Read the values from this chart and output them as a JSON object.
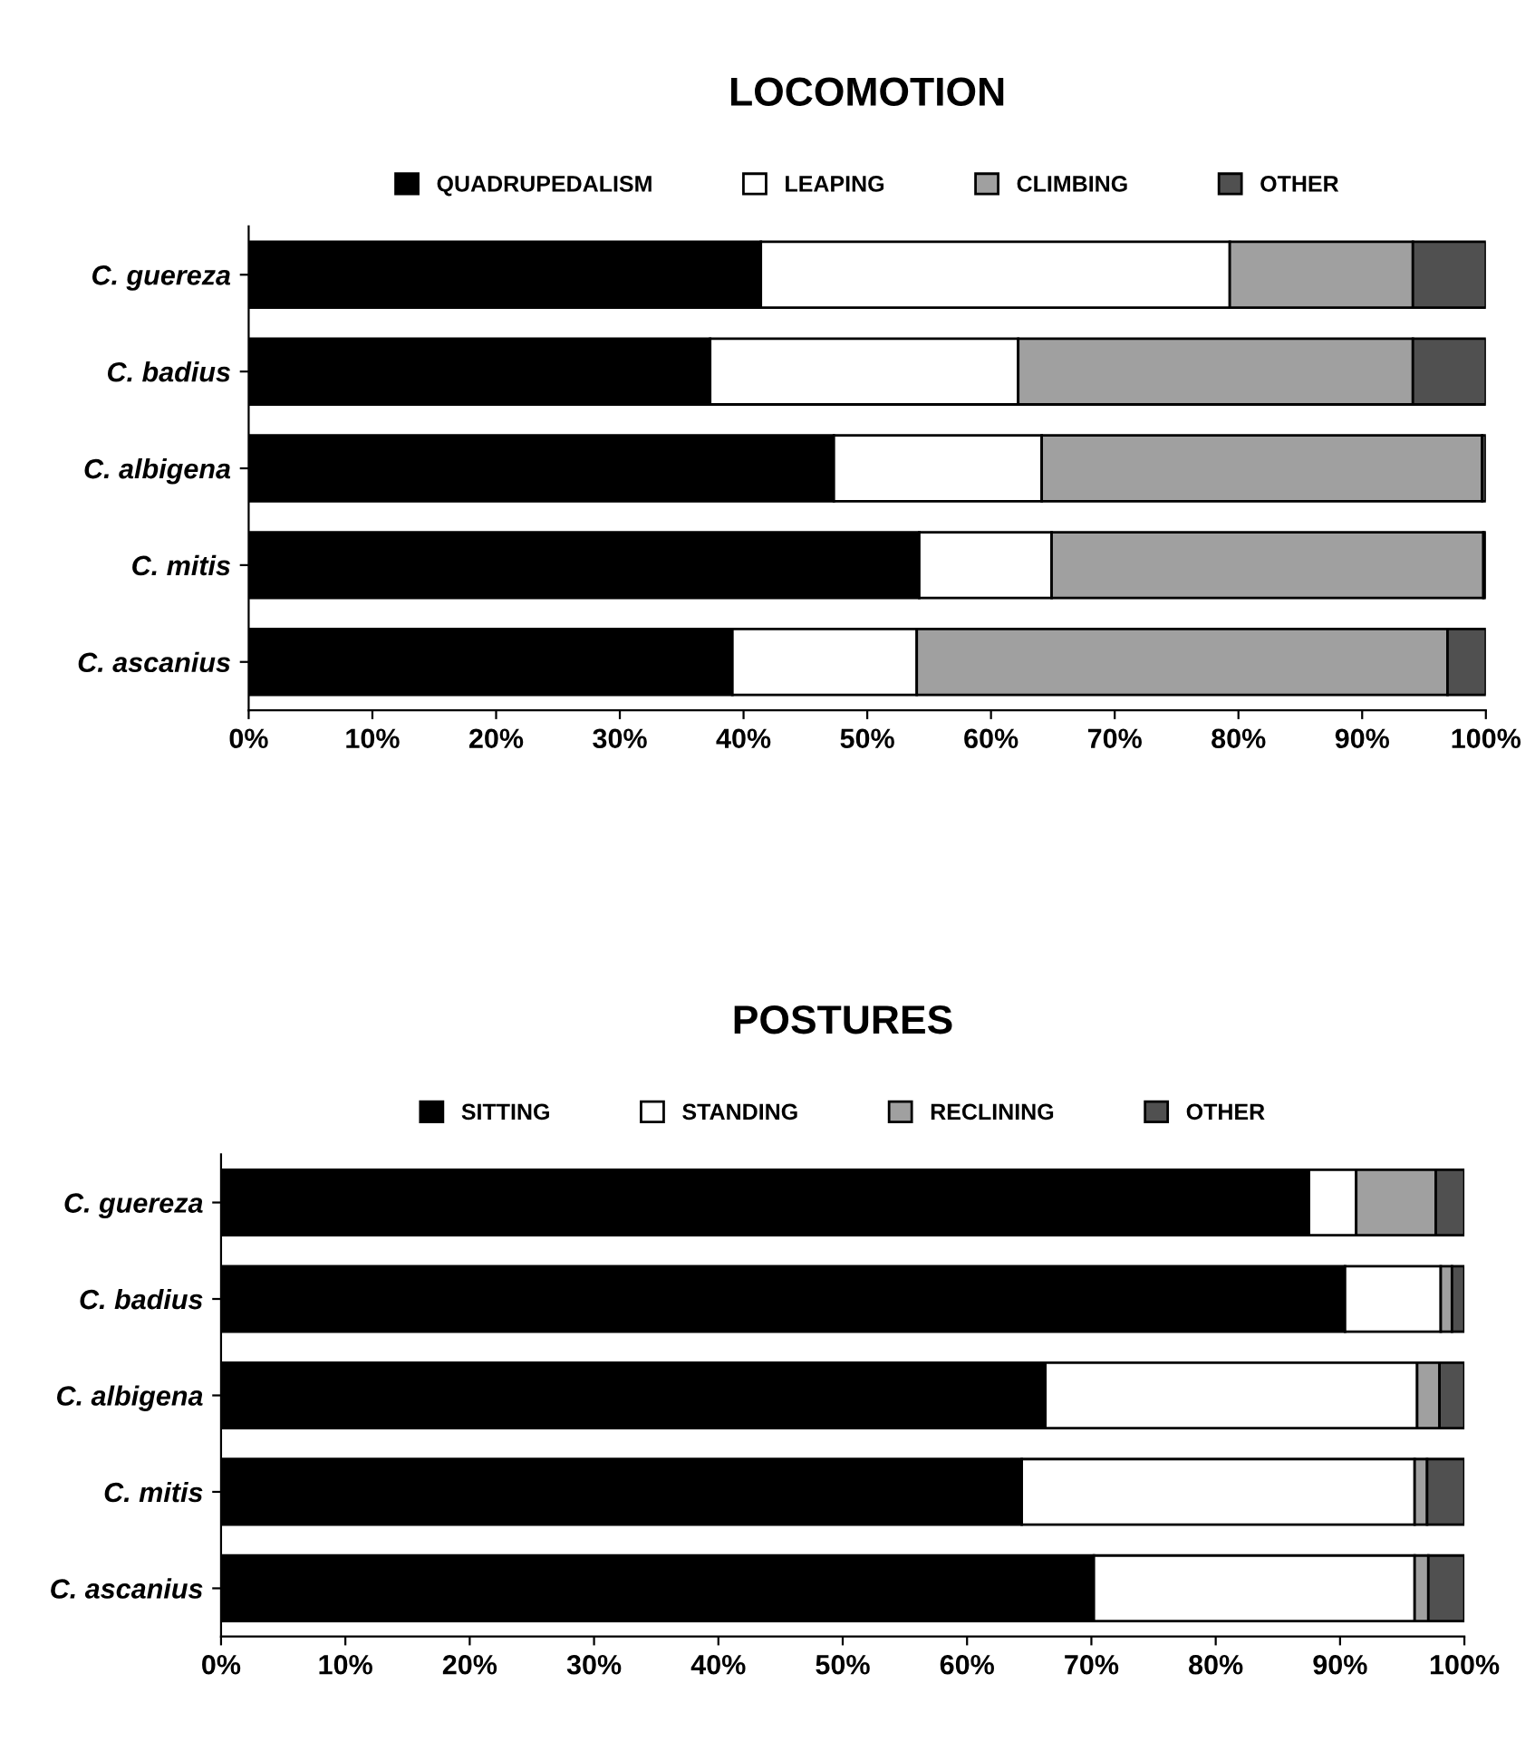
{
  "chart_data": [
    {
      "type": "bar",
      "title": "LOCOMOTION",
      "orientation": "horizontal",
      "stacked": true,
      "legend": "top",
      "grid": false,
      "categories": [
        "C. guereza",
        "C. badius",
        "C. albigena",
        "C. mitis",
        "C. ascanius"
      ],
      "xlim": [
        0,
        100
      ],
      "xticks": [
        {
          "value": 0,
          "label": "0%"
        },
        {
          "value": 10,
          "label": "10%"
        },
        {
          "value": 20,
          "label": "20%"
        },
        {
          "value": 30,
          "label": "30%"
        },
        {
          "value": 40,
          "label": "40%"
        },
        {
          "value": 50,
          "label": "50%"
        },
        {
          "value": 60,
          "label": "60%"
        },
        {
          "value": 70,
          "label": "70%"
        },
        {
          "value": 80,
          "label": "80%"
        },
        {
          "value": 90,
          "label": "90%"
        },
        {
          "value": 100,
          "label": "100%"
        }
      ],
      "series": [
        {
          "name": "QUADRUPEDALISM",
          "color": "#000000",
          "values": [
            41.4,
            37.3,
            47.3,
            54.2,
            39.1
          ]
        },
        {
          "name": "LEAPING",
          "color": "#ffffff",
          "values": [
            37.9,
            24.9,
            16.8,
            10.7,
            14.9
          ]
        },
        {
          "name": "CLIMBING",
          "color": "#a0a0a0",
          "values": [
            14.8,
            31.9,
            35.6,
            34.9,
            42.9
          ]
        },
        {
          "name": "OTHER",
          "color": "#505050",
          "values": [
            5.9,
            5.9,
            0.3,
            0.2,
            3.1
          ]
        }
      ]
    },
    {
      "type": "bar",
      "title": "POSTURES",
      "orientation": "horizontal",
      "stacked": true,
      "legend": "top",
      "grid": false,
      "categories": [
        "C. guereza",
        "C. badius",
        "C. albigena",
        "C. mitis",
        "C. ascanius"
      ],
      "xlim": [
        0,
        100
      ],
      "xticks": [
        {
          "value": 0,
          "label": "0%"
        },
        {
          "value": 10,
          "label": "10%"
        },
        {
          "value": 20,
          "label": "20%"
        },
        {
          "value": 30,
          "label": "30%"
        },
        {
          "value": 40,
          "label": "40%"
        },
        {
          "value": 50,
          "label": "50%"
        },
        {
          "value": 60,
          "label": "60%"
        },
        {
          "value": 70,
          "label": "70%"
        },
        {
          "value": 80,
          "label": "80%"
        },
        {
          "value": 90,
          "label": "90%"
        },
        {
          "value": 100,
          "label": "100%"
        }
      ],
      "series": [
        {
          "name": "SITTING",
          "color": "#000000",
          "values": [
            87.5,
            90.4,
            66.3,
            64.4,
            70.2
          ]
        },
        {
          "name": "STANDING",
          "color": "#ffffff",
          "values": [
            3.8,
            7.7,
            29.9,
            31.6,
            25.8
          ]
        },
        {
          "name": "RECLINING",
          "color": "#a0a0a0",
          "values": [
            6.4,
            0.9,
            1.8,
            1.0,
            1.1
          ]
        },
        {
          "name": "OTHER",
          "color": "#505050",
          "values": [
            2.3,
            1.0,
            2.0,
            3.0,
            2.9
          ]
        }
      ]
    }
  ]
}
